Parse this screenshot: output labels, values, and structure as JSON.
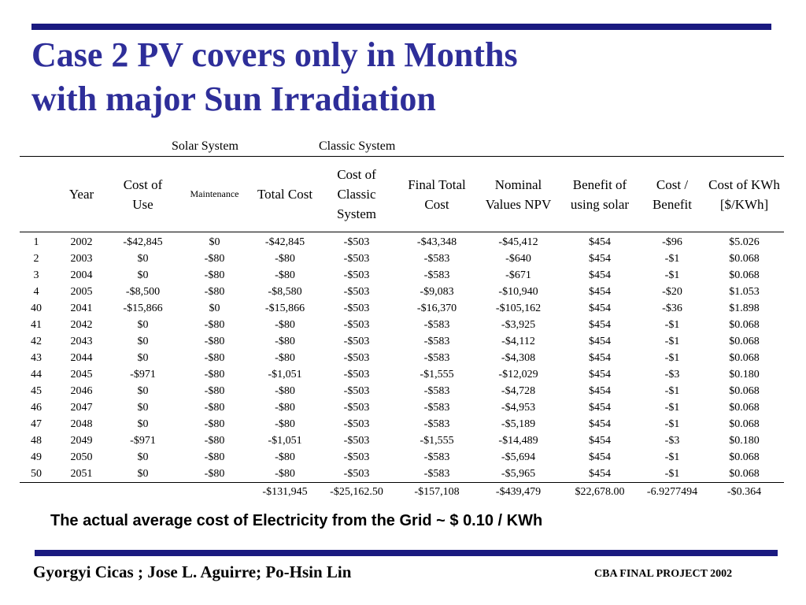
{
  "title": {
    "line1": "Case 2 PV covers only in Months",
    "line2": "with major Sun Irradiation"
  },
  "group_labels": {
    "solar": "Solar System",
    "classic": "Classic System"
  },
  "table": {
    "headers": [
      "",
      "Year",
      "Cost of Use",
      "Maintenance",
      "Total Cost",
      "Cost of Classic System",
      "Final Total Cost",
      "Nominal Values NPV",
      "Benefit of using solar",
      "Cost / Benefit",
      "Cost of KWh [$/KWh]"
    ],
    "rows": [
      [
        "1",
        "2002",
        "-$42,845",
        "$0",
        "-$42,845",
        "-$503",
        "-$43,348",
        "-$45,412",
        "$454",
        "-$96",
        "$5.026"
      ],
      [
        "2",
        "2003",
        "$0",
        "-$80",
        "-$80",
        "-$503",
        "-$583",
        "-$640",
        "$454",
        "-$1",
        "$0.068"
      ],
      [
        "3",
        "2004",
        "$0",
        "-$80",
        "-$80",
        "-$503",
        "-$583",
        "-$671",
        "$454",
        "-$1",
        "$0.068"
      ],
      [
        "4",
        "2005",
        "-$8,500",
        "-$80",
        "-$8,580",
        "-$503",
        "-$9,083",
        "-$10,940",
        "$454",
        "-$20",
        "$1.053"
      ],
      [
        "40",
        "2041",
        "-$15,866",
        "$0",
        "-$15,866",
        "-$503",
        "-$16,370",
        "-$105,162",
        "$454",
        "-$36",
        "$1.898"
      ],
      [
        "41",
        "2042",
        "$0",
        "-$80",
        "-$80",
        "-$503",
        "-$583",
        "-$3,925",
        "$454",
        "-$1",
        "$0.068"
      ],
      [
        "42",
        "2043",
        "$0",
        "-$80",
        "-$80",
        "-$503",
        "-$583",
        "-$4,112",
        "$454",
        "-$1",
        "$0.068"
      ],
      [
        "43",
        "2044",
        "$0",
        "-$80",
        "-$80",
        "-$503",
        "-$583",
        "-$4,308",
        "$454",
        "-$1",
        "$0.068"
      ],
      [
        "44",
        "2045",
        "-$971",
        "-$80",
        "-$1,051",
        "-$503",
        "-$1,555",
        "-$12,029",
        "$454",
        "-$3",
        "$0.180"
      ],
      [
        "45",
        "2046",
        "$0",
        "-$80",
        "-$80",
        "-$503",
        "-$583",
        "-$4,728",
        "$454",
        "-$1",
        "$0.068"
      ],
      [
        "46",
        "2047",
        "$0",
        "-$80",
        "-$80",
        "-$503",
        "-$583",
        "-$4,953",
        "$454",
        "-$1",
        "$0.068"
      ],
      [
        "47",
        "2048",
        "$0",
        "-$80",
        "-$80",
        "-$503",
        "-$583",
        "-$5,189",
        "$454",
        "-$1",
        "$0.068"
      ],
      [
        "48",
        "2049",
        "-$971",
        "-$80",
        "-$1,051",
        "-$503",
        "-$1,555",
        "-$14,489",
        "$454",
        "-$3",
        "$0.180"
      ],
      [
        "49",
        "2050",
        "$0",
        "-$80",
        "-$80",
        "-$503",
        "-$583",
        "-$5,694",
        "$454",
        "-$1",
        "$0.068"
      ],
      [
        "50",
        "2051",
        "$0",
        "-$80",
        "-$80",
        "-$503",
        "-$583",
        "-$5,965",
        "$454",
        "-$1",
        "$0.068"
      ]
    ],
    "totals": [
      "",
      "",
      "",
      "",
      "-$131,945",
      "-$25,162.50",
      "-$157,108",
      "-$439,479",
      "$22,678.00",
      "-6.9277494",
      "-$0.364"
    ]
  },
  "note": "The actual average cost of Electricity from the Grid ~  $ 0.10 / KWh",
  "footer": {
    "authors": "Gyorgyi Cicas ; Jose L. Aguirre;  Po-Hsin Lin",
    "project": "CBA FINAL PROJECT 2002"
  },
  "colors": {
    "title": "#2e2e99",
    "bar": "#1a1a80"
  }
}
